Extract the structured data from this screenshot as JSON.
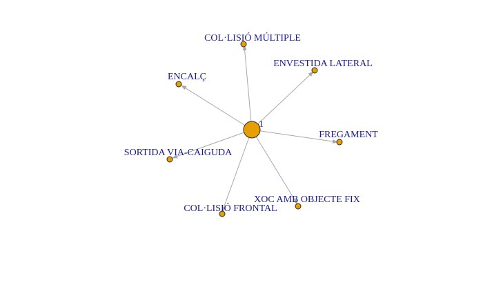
{
  "graph": {
    "center": {
      "label": "1",
      "color": "#E69F00"
    },
    "nodes": [
      {
        "id": "col-lisio-multiple",
        "label": "COL·LISIÓ MÚLTIPLE",
        "color": "#E69F00"
      },
      {
        "id": "envestida-lateral",
        "label": "ENVESTIDA LATERAL",
        "color": "#E69F00"
      },
      {
        "id": "encalc",
        "label": "ENCALÇ",
        "color": "#E69F00"
      },
      {
        "id": "fregament",
        "label": "FREGAMENT",
        "color": "#E69F00"
      },
      {
        "id": "sortida-via-caiguda",
        "label": "SORTIDA VIA-CAIGUDA",
        "color": "#E69F00"
      },
      {
        "id": "xoc-amb-objecte-fix",
        "label": "XOC AMB OBJECTE FIX",
        "color": "#E69F00"
      },
      {
        "id": "col-lisio-frontal",
        "label": "COL·LISIÓ FRONTAL",
        "color": "#E69F00"
      }
    ],
    "edge_color": "#A8A8A8",
    "label_color": "#1A1A8C"
  }
}
